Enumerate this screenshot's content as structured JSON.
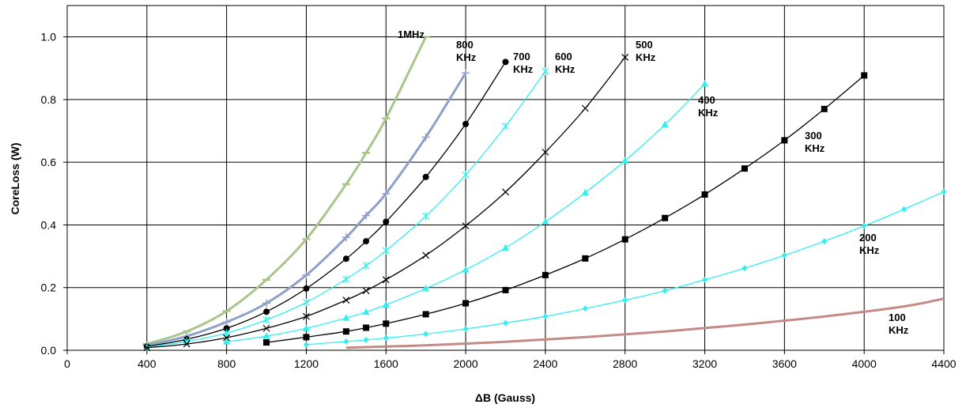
{
  "chart_data": {
    "type": "line",
    "xlabel": "ΔB  (Gauss)",
    "ylabel": "CoreLoss (W)",
    "xlim": [
      0,
      4400
    ],
    "ylim": [
      0,
      1.1
    ],
    "x_ticks": [
      "0",
      "400",
      "800",
      "1200",
      "1600",
      "2000",
      "2400",
      "2800",
      "3200",
      "3600",
      "4000",
      "4400"
    ],
    "y_ticks": [
      "0.0",
      "0.2",
      "0.4",
      "0.6",
      "0.8",
      "1.0"
    ],
    "grid": true,
    "series": [
      {
        "name": "1MHz",
        "color": "#a9c58b",
        "marker": "dash",
        "label_lines": [
          "1MHz"
        ],
        "x": [
          400,
          600,
          800,
          1000,
          1200,
          1400,
          1500,
          1600,
          1800
        ],
        "y": [
          0.02,
          0.06,
          0.125,
          0.225,
          0.355,
          0.53,
          0.63,
          0.74,
          1.0
        ]
      },
      {
        "name": "800 KHz",
        "color": "#8fa0c8",
        "marker": "plus",
        "label_lines": [
          "800",
          "KHz"
        ],
        "x": [
          400,
          600,
          800,
          1000,
          1200,
          1400,
          1500,
          1600,
          1800,
          2000
        ],
        "y": [
          0.015,
          0.045,
          0.09,
          0.15,
          0.24,
          0.36,
          0.43,
          0.5,
          0.68,
          0.885
        ]
      },
      {
        "name": "700 KHz",
        "color": "#000000",
        "marker": "circle",
        "label_lines": [
          "700",
          "KHz"
        ],
        "x": [
          400,
          600,
          800,
          1000,
          1200,
          1400,
          1500,
          1600,
          1800,
          2000,
          2200
        ],
        "y": [
          0.012,
          0.035,
          0.07,
          0.123,
          0.197,
          0.292,
          0.348,
          0.41,
          0.553,
          0.722,
          0.92
        ]
      },
      {
        "name": "600 KHz",
        "color": "#33f0f0",
        "marker": "star",
        "label_lines": [
          "600",
          "KHz"
        ],
        "x": [
          400,
          600,
          800,
          1000,
          1200,
          1400,
          1500,
          1600,
          1800,
          2000,
          2200,
          2400
        ],
        "y": [
          0.01,
          0.028,
          0.055,
          0.097,
          0.153,
          0.227,
          0.27,
          0.318,
          0.428,
          0.56,
          0.715,
          0.89
        ]
      },
      {
        "name": "500 KHz",
        "color": "#000000",
        "marker": "x",
        "label_lines": [
          "500",
          "KHz"
        ],
        "x": [
          400,
          600,
          800,
          1000,
          1200,
          1400,
          1500,
          1600,
          1800,
          2000,
          2200,
          2400,
          2600,
          2800
        ],
        "y": [
          0.008,
          0.02,
          0.04,
          0.07,
          0.108,
          0.16,
          0.19,
          0.225,
          0.303,
          0.397,
          0.505,
          0.632,
          0.772,
          0.935
        ]
      },
      {
        "name": "400 KHz",
        "color": "#33f0f0",
        "marker": "triangle",
        "label_lines": [
          "400",
          "KHz"
        ],
        "x": [
          800,
          1000,
          1200,
          1400,
          1500,
          1600,
          1800,
          2000,
          2200,
          2400,
          2600,
          2800,
          3000,
          3200
        ],
        "y": [
          0.027,
          0.045,
          0.07,
          0.103,
          0.122,
          0.145,
          0.197,
          0.257,
          0.327,
          0.41,
          0.503,
          0.605,
          0.72,
          0.85
        ]
      },
      {
        "name": "300 KHz",
        "color": "#000000",
        "marker": "square",
        "label_lines": [
          "300",
          "KHz"
        ],
        "x": [
          1000,
          1200,
          1400,
          1500,
          1600,
          1800,
          2000,
          2200,
          2400,
          2600,
          2800,
          3000,
          3200,
          3400,
          3600,
          3800,
          4000
        ],
        "y": [
          0.025,
          0.042,
          0.06,
          0.072,
          0.085,
          0.115,
          0.15,
          0.192,
          0.24,
          0.293,
          0.354,
          0.422,
          0.497,
          0.58,
          0.67,
          0.77,
          0.877
        ]
      },
      {
        "name": "200 KHz",
        "color": "#33f0f0",
        "marker": "diamond",
        "label_lines": [
          "200",
          "KHz"
        ],
        "x": [
          1200,
          1400,
          1500,
          1600,
          1800,
          2000,
          2200,
          2400,
          2600,
          2800,
          3000,
          3200,
          3400,
          3600,
          3800,
          4000,
          4200,
          4400
        ],
        "y": [
          0.018,
          0.028,
          0.033,
          0.039,
          0.052,
          0.068,
          0.087,
          0.108,
          0.133,
          0.16,
          0.19,
          0.225,
          0.262,
          0.303,
          0.348,
          0.397,
          0.45,
          0.506
        ]
      },
      {
        "name": "100 KHz",
        "color": "#c48a86",
        "marker": "none",
        "label_lines": [
          "100",
          "KHz"
        ],
        "x": [
          1400,
          1800,
          2200,
          2600,
          3000,
          3400,
          3800,
          4200,
          4400
        ],
        "y": [
          0.008,
          0.016,
          0.027,
          0.042,
          0.06,
          0.082,
          0.108,
          0.14,
          0.165
        ]
      }
    ]
  }
}
